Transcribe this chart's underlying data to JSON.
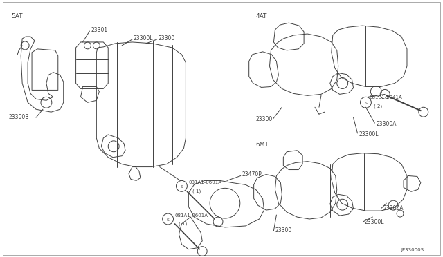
{
  "bg_color": "#ffffff",
  "line_color": "#404040",
  "text_color": "#404040",
  "diagram_number": "JP33000S",
  "lw": 0.7,
  "fs_label": 5.5,
  "fs_section": 6.5,
  "font": "DejaVu Sans",
  "border_color": "#888888",
  "border_lw": 0.5,
  "sections": {
    "5AT": [
      0.025,
      0.93
    ],
    "4AT": [
      0.54,
      0.97
    ],
    "6MT": [
      0.54,
      0.5
    ]
  },
  "labels_5AT": {
    "23301": [
      0.175,
      0.86,
      0.158,
      0.8
    ],
    "23300L": [
      0.255,
      0.77,
      0.255,
      0.72
    ],
    "23300": [
      0.315,
      0.77,
      0.295,
      0.71
    ],
    "23300B": [
      0.035,
      0.59,
      0.075,
      0.64
    ],
    "23470P": [
      0.415,
      0.39,
      0.395,
      0.34
    ]
  },
  "labels_4AT": {
    "23300": [
      0.545,
      0.665,
      0.575,
      0.72
    ],
    "23300A": [
      0.765,
      0.615,
      0.76,
      0.655
    ],
    "23300L": [
      0.74,
      0.585,
      0.755,
      0.645
    ]
  },
  "labels_6MT": {
    "23300": [
      0.6,
      0.185,
      0.62,
      0.235
    ],
    "23300A": [
      0.775,
      0.315,
      0.77,
      0.35
    ],
    "23300L": [
      0.745,
      0.275,
      0.755,
      0.31
    ]
  }
}
